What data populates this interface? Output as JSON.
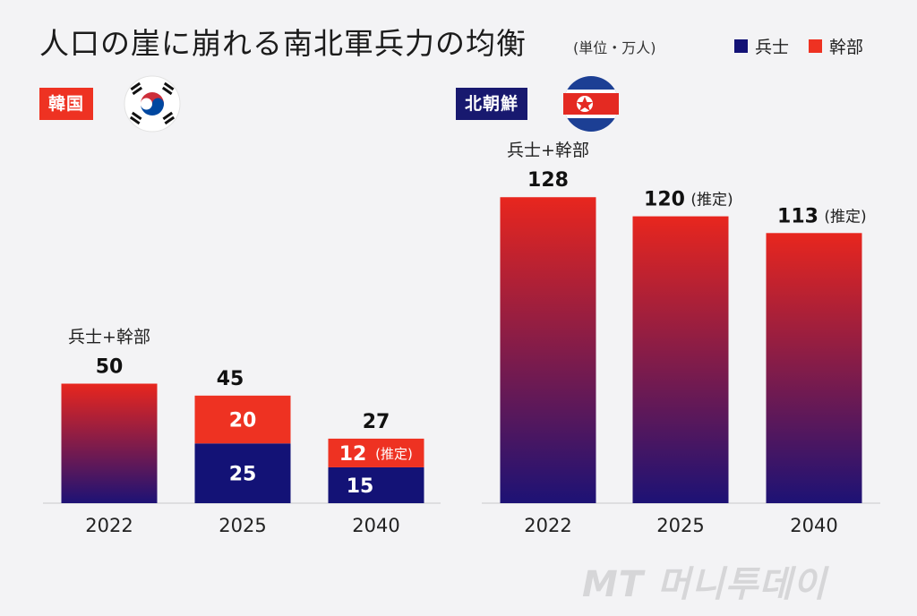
{
  "title": "人口の崖に崩れる南北軍兵力の均衡",
  "unit": "(単位・万人)",
  "legend": {
    "soldier": "兵士",
    "officer": "幹部"
  },
  "colors": {
    "soldier": "#131276",
    "officer": "#ee3222",
    "gradient_top": "#e8261e",
    "gradient_bottom": "#1d1275",
    "south_badge": "#ee3222",
    "north_badge": "#18196f"
  },
  "south_badge": "韓国",
  "north_badge": "北朝鮮",
  "watermark": "MT 머니투데이",
  "chart_data": [
    {
      "type": "bar",
      "title": "韓国",
      "total_label": "兵士+幹部",
      "categories": [
        "2022",
        "2025",
        "2040"
      ],
      "series": [
        {
          "name": "兵士",
          "values": [
            null,
            25,
            15
          ]
        },
        {
          "name": "幹部",
          "values": [
            null,
            20,
            12
          ]
        }
      ],
      "totals": [
        50,
        45,
        27
      ],
      "estimate_label": "(推定)",
      "estimated": [
        false,
        false,
        true
      ],
      "ylim": [
        0,
        128
      ]
    },
    {
      "type": "bar",
      "title": "北朝鮮",
      "total_label": "兵士+幹部",
      "categories": [
        "2022",
        "2025",
        "2040"
      ],
      "totals": [
        128,
        120,
        113
      ],
      "estimate_label": "(推定)",
      "estimated": [
        false,
        true,
        true
      ],
      "ylim": [
        0,
        128
      ]
    }
  ]
}
